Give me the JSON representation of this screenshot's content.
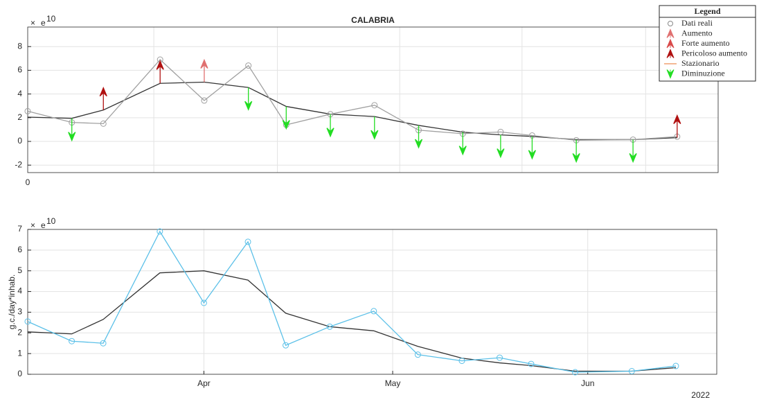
{
  "chart_data": [
    {
      "type": "trend-arrows",
      "title": "CALABRIA",
      "x": [
        63,
        70,
        75,
        84,
        91,
        98,
        104,
        111,
        118,
        125,
        132,
        138,
        143,
        150,
        159,
        166
      ],
      "xlim": [
        63,
        172.5
      ],
      "xgrid": [
        83,
        102.6,
        122,
        141.4,
        161
      ],
      "x_origin_label": "0",
      "ylim": [
        -2.63,
        9.65
      ],
      "yticks": [
        -2,
        0,
        2,
        4,
        6,
        8
      ],
      "grid": true,
      "exponent_prefix": "×",
      "exponent_base": "e",
      "exponent_power": "10",
      "series": [
        {
          "name": "Dati reali",
          "color": "#a0a0a0",
          "marker": "circle",
          "values": [
            2.55,
            1.6,
            1.5,
            6.9,
            3.45,
            6.4,
            1.4,
            2.3,
            3.05,
            0.95,
            0.65,
            0.8,
            0.5,
            0.1,
            0.15,
            0.4
          ]
        },
        {
          "color": "#333333",
          "values": [
            2.05,
            1.95,
            2.65,
            4.9,
            5.0,
            4.55,
            2.95,
            2.3,
            2.1,
            1.35,
            0.78,
            0.55,
            0.42,
            0.15,
            0.15,
            0.32
          ]
        }
      ],
      "statuses": [
        null,
        "Diminuzione",
        "Pericoloso aumento",
        "Pericoloso aumento",
        "Aumento",
        "Diminuzione",
        "Diminuzione",
        "Diminuzione",
        "Diminuzione",
        "Diminuzione",
        "Diminuzione",
        "Diminuzione",
        "Diminuzione",
        "Diminuzione",
        "Diminuzione",
        "Pericoloso aumento"
      ],
      "legend": {
        "title": "Legend",
        "items": [
          {
            "label": "Dati reali",
            "color": "#888888",
            "symbol": "circle"
          },
          {
            "label": "Aumento",
            "color": "#e07070",
            "symbol": "arrow-up"
          },
          {
            "label": "Forte aumento",
            "color": "#d94a4a",
            "symbol": "arrow-up"
          },
          {
            "label": "Pericoloso aumento",
            "color": "#b01010",
            "symbol": "arrow-up"
          },
          {
            "label": "Stazionario",
            "color": "#f0a070",
            "symbol": "line"
          },
          {
            "label": "Diminuzione",
            "color": "#22dd22",
            "symbol": "arrow-down"
          }
        ]
      }
    },
    {
      "type": "line",
      "x": [
        63,
        70,
        75,
        84,
        91,
        98,
        104,
        111,
        118,
        125,
        132,
        138,
        143,
        150,
        159,
        166
      ],
      "xlim": [
        63,
        172.5
      ],
      "xticks": [
        {
          "value": 91,
          "label": "Apr"
        },
        {
          "value": 121,
          "label": "May"
        },
        {
          "value": 152,
          "label": "Jun"
        }
      ],
      "year_label": "2022",
      "ylabel": "g.c./day*inhab.",
      "ylim": [
        0,
        7
      ],
      "yticks": [
        0,
        1,
        2,
        3,
        4,
        5,
        6,
        7
      ],
      "grid": true,
      "exponent_prefix": "×",
      "exponent_base": "e",
      "exponent_power": "10",
      "series": [
        {
          "color": "#5bc0e8",
          "marker": "circle",
          "values": [
            2.55,
            1.6,
            1.5,
            6.9,
            3.45,
            6.4,
            1.4,
            2.3,
            3.05,
            0.95,
            0.65,
            0.8,
            0.5,
            0.1,
            0.15,
            0.4
          ]
        },
        {
          "color": "#333333",
          "values": [
            2.05,
            1.95,
            2.65,
            4.9,
            5.0,
            4.55,
            2.95,
            2.3,
            2.1,
            1.35,
            0.78,
            0.55,
            0.42,
            0.15,
            0.15,
            0.32
          ]
        }
      ]
    }
  ]
}
